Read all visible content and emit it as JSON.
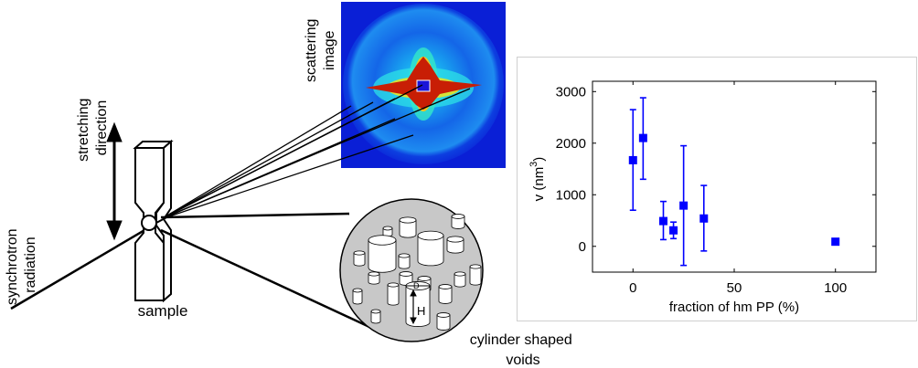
{
  "diagram": {
    "labels": {
      "scattering_image": [
        "scattering",
        "image"
      ],
      "stretching_direction": [
        "stretching",
        "direction"
      ],
      "synchrotron_radiation": [
        "synchrotron",
        "radiation"
      ],
      "sample": "sample",
      "voids": [
        "cylinder shaped",
        "voids"
      ],
      "void_diameter": "D",
      "void_height": "H"
    },
    "colors": {
      "scatter_background": "#0a1fd6",
      "scatter_ring": "#1e8cf0",
      "scatter_halo": "#2de0e6",
      "scatter_yellow": "#f2e51a",
      "scatter_red": "#c81e05",
      "void_disc": "#c8c8c8",
      "marker": "#0000ff"
    }
  },
  "chart_data": {
    "type": "scatter",
    "xlabel": "fraction of hm PP (%)",
    "ylabel": "v (nm",
    "ylabel_superscript": "3",
    "ylabel_close": ")",
    "xlim": [
      -20,
      120
    ],
    "ylim": [
      -500,
      3200
    ],
    "x_ticks": [
      0,
      50,
      100
    ],
    "y_ticks": [
      0,
      1000,
      2000,
      3000
    ],
    "grid": false,
    "series": [
      {
        "marker": "square",
        "color": "#0000ff",
        "points": [
          {
            "x": 0,
            "y": 1670,
            "err_low": 700,
            "err_high": 2650
          },
          {
            "x": 5,
            "y": 2100,
            "err_low": 1300,
            "err_high": 2880
          },
          {
            "x": 15,
            "y": 490,
            "err_low": 130,
            "err_high": 870
          },
          {
            "x": 20,
            "y": 310,
            "err_low": 150,
            "err_high": 470
          },
          {
            "x": 25,
            "y": 790,
            "err_low": -370,
            "err_high": 1950
          },
          {
            "x": 35,
            "y": 540,
            "err_low": -90,
            "err_high": 1180
          },
          {
            "x": 100,
            "y": 90,
            "err_low": 90,
            "err_high": 90
          }
        ]
      }
    ]
  }
}
